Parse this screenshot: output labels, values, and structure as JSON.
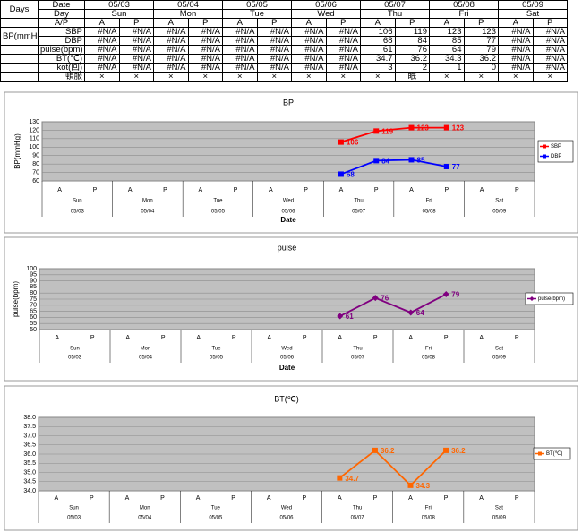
{
  "table": {
    "corner": "Days",
    "header_rows": [
      {
        "label": "Date",
        "cells": [
          "05/03",
          "05/04",
          "05/05",
          "05/06",
          "05/07",
          "05/08",
          "05/09"
        ]
      },
      {
        "label": "Day",
        "cells": [
          "Sun",
          "Mon",
          "Tue",
          "Wed",
          "Thu",
          "Fri",
          "Sat"
        ]
      },
      {
        "label": "A/P",
        "cells": [
          "A",
          "P",
          "A",
          "P",
          "A",
          "P",
          "A",
          "P",
          "A",
          "P",
          "A",
          "P",
          "A",
          "P"
        ]
      }
    ],
    "group_label": "BP(mmHg)",
    "rows": [
      {
        "label": "SBP",
        "cells": [
          "#N/A",
          "#N/A",
          "#N/A",
          "#N/A",
          "#N/A",
          "#N/A",
          "#N/A",
          "#N/A",
          "106",
          "119",
          "123",
          "123",
          "#N/A",
          "#N/A"
        ]
      },
      {
        "label": "DBP",
        "cells": [
          "#N/A",
          "#N/A",
          "#N/A",
          "#N/A",
          "#N/A",
          "#N/A",
          "#N/A",
          "#N/A",
          "68",
          "84",
          "85",
          "77",
          "#N/A",
          "#N/A"
        ]
      },
      {
        "label": "pulse(bpm)",
        "cells": [
          "#N/A",
          "#N/A",
          "#N/A",
          "#N/A",
          "#N/A",
          "#N/A",
          "#N/A",
          "#N/A",
          "61",
          "76",
          "64",
          "79",
          "#N/A",
          "#N/A"
        ]
      },
      {
        "label": "BT(℃)",
        "cells": [
          "#N/A",
          "#N/A",
          "#N/A",
          "#N/A",
          "#N/A",
          "#N/A",
          "#N/A",
          "#N/A",
          "34.7",
          "36.2",
          "34.3",
          "36.2",
          "#N/A",
          "#N/A"
        ]
      },
      {
        "label": "kot(回)",
        "cells": [
          "#N/A",
          "#N/A",
          "#N/A",
          "#N/A",
          "#N/A",
          "#N/A",
          "#N/A",
          "#N/A",
          "3",
          "2",
          "1",
          "0",
          "#N/A",
          "#N/A"
        ]
      },
      {
        "label": "頓服",
        "cells": [
          "×",
          "×",
          "×",
          "×",
          "×",
          "×",
          "×",
          "×",
          "×",
          "眠",
          "×",
          "×",
          "×",
          "×"
        ]
      }
    ]
  },
  "chart_data": [
    {
      "type": "line",
      "title": "BP",
      "y_label": "BP(mmHg)",
      "x_label": "Date",
      "categories": [
        "A",
        "P",
        "A",
        "P",
        "A",
        "P",
        "A",
        "P",
        "A",
        "P",
        "A",
        "P",
        "A",
        "P"
      ],
      "groups": [
        "Sun",
        "Mon",
        "Tue",
        "Wed",
        "Thu",
        "Fri",
        "Sat"
      ],
      "group_dates": [
        "05/03",
        "05/04",
        "05/05",
        "05/06",
        "05/07",
        "05/08",
        "05/09"
      ],
      "ylim": [
        60,
        130
      ],
      "yticks": [
        60,
        70,
        80,
        90,
        100,
        110,
        120,
        130
      ],
      "grid": true,
      "legend": "right",
      "series": [
        {
          "name": "SBP",
          "color": "#ff0000",
          "marker": "square",
          "values": [
            null,
            null,
            null,
            null,
            null,
            null,
            null,
            null,
            106,
            119,
            123,
            123,
            null,
            null
          ]
        },
        {
          "name": "DBP",
          "color": "#0000ff",
          "marker": "square",
          "values": [
            null,
            null,
            null,
            null,
            null,
            null,
            null,
            null,
            68,
            84,
            85,
            77,
            null,
            null
          ]
        }
      ]
    },
    {
      "type": "line",
      "title": "pulse",
      "y_label": "pulse(bpm)",
      "x_label": "Date",
      "categories": [
        "A",
        "P",
        "A",
        "P",
        "A",
        "P",
        "A",
        "P",
        "A",
        "P",
        "A",
        "P",
        "A",
        "P"
      ],
      "groups": [
        "Sun",
        "Mon",
        "Tue",
        "Wed",
        "Thu",
        "Fri",
        "Sat"
      ],
      "group_dates": [
        "05/03",
        "05/04",
        "05/05",
        "05/06",
        "05/07",
        "05/08",
        "05/09"
      ],
      "ylim": [
        50,
        100
      ],
      "yticks": [
        50,
        55,
        60,
        65,
        70,
        75,
        80,
        85,
        90,
        95,
        100
      ],
      "grid": true,
      "legend": "right",
      "series": [
        {
          "name": "pulse(bpm)",
          "color": "#800080",
          "marker": "diamond",
          "values": [
            null,
            null,
            null,
            null,
            null,
            null,
            null,
            null,
            61,
            76,
            64,
            79,
            null,
            null
          ]
        }
      ]
    },
    {
      "type": "line",
      "title": "BT(℃)",
      "categories": [
        "A",
        "P",
        "A",
        "P",
        "A",
        "P",
        "A",
        "P",
        "A",
        "P",
        "A",
        "P",
        "A",
        "P"
      ],
      "groups": [
        "Sun",
        "Mon",
        "Tue",
        "Wed",
        "Thu",
        "Fri",
        "Sat"
      ],
      "group_dates": [
        "05/03",
        "05/04",
        "05/05",
        "05/06",
        "05/07",
        "05/08",
        "05/09"
      ],
      "ylim": [
        34,
        38
      ],
      "yticks": [
        {
          "value": 34,
          "label": "34.0"
        },
        34.5,
        {
          "value": 35,
          "label": "35.0"
        },
        35.5,
        {
          "value": 36,
          "label": "36.0"
        },
        36.5,
        {
          "value": 37,
          "label": "37.0"
        },
        37.5,
        {
          "value": 38,
          "label": "38.0"
        }
      ],
      "grid": true,
      "legend": "right",
      "series": [
        {
          "name": "BT(℃)",
          "color": "#ff6600",
          "marker": "square",
          "values": [
            null,
            null,
            null,
            null,
            null,
            null,
            null,
            null,
            34.7,
            36.2,
            34.3,
            36.2,
            null,
            null
          ]
        }
      ]
    }
  ]
}
